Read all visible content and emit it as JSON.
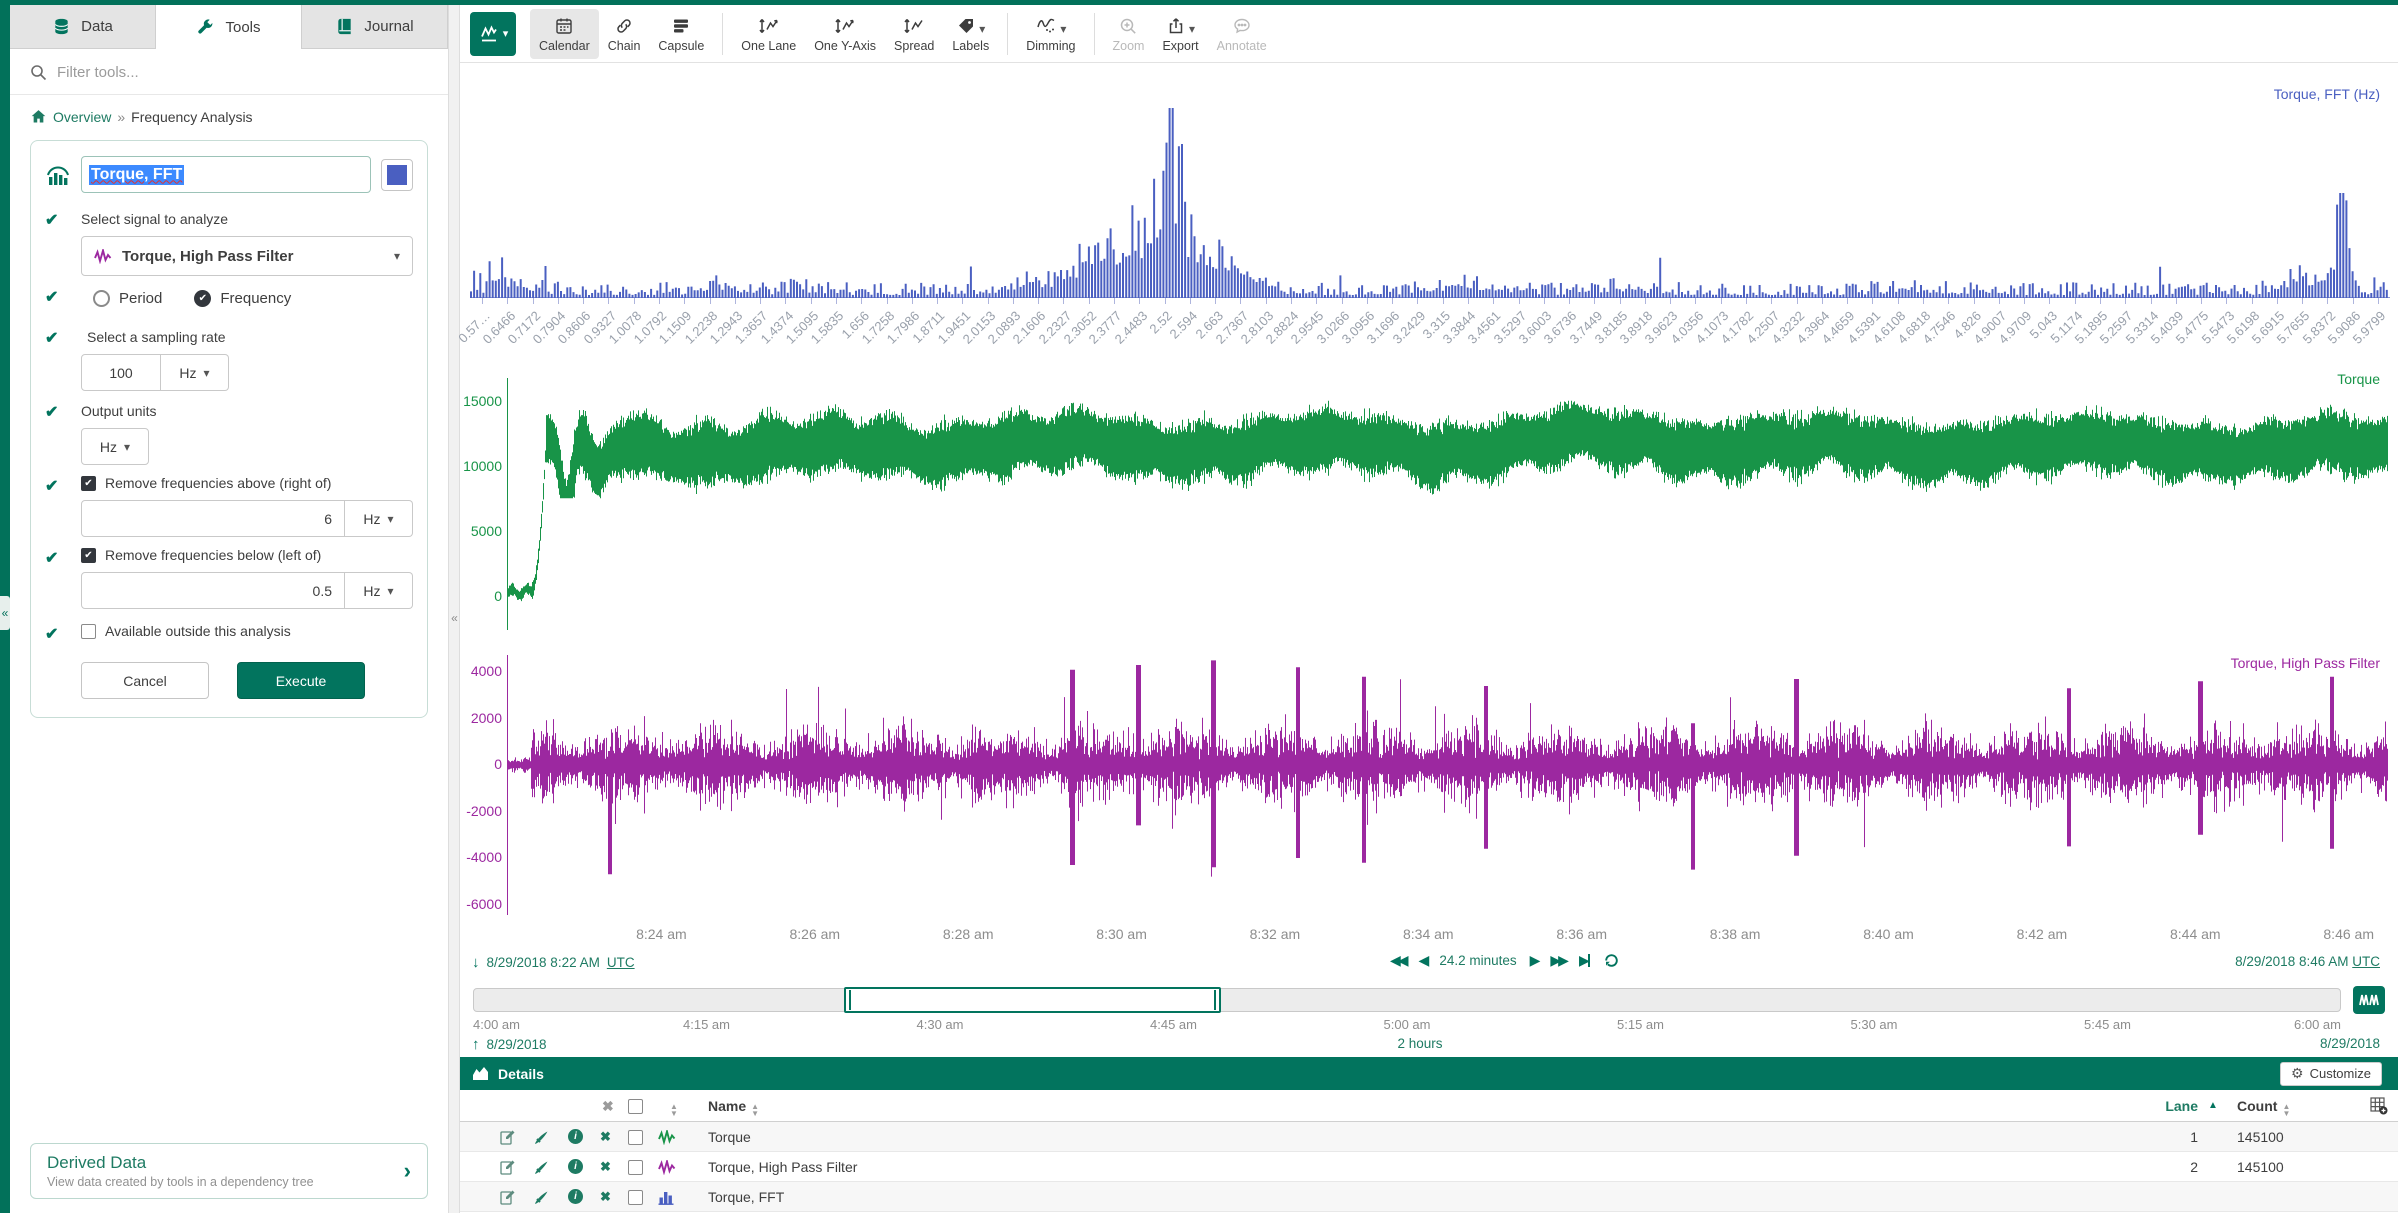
{
  "icons": {
    "check": "✔",
    "x": "✖",
    "caret_down": "▾",
    "sort_asc": "▲",
    "sort_desc": "▼",
    "collapse": "«",
    "breadcrumb_sep": "»",
    "arrow_down": "↓",
    "arrow_up": "↑",
    "step_back": "◀",
    "step_fwd": "▶",
    "fast_back": "◀◀",
    "fast_fwd": "▶▶",
    "gear": "⚙",
    "chevron_right": "›",
    "info": "i"
  },
  "sidebar": {
    "tabs": [
      {
        "label": "Data"
      },
      {
        "label": "Tools"
      },
      {
        "label": "Journal"
      }
    ],
    "filter_placeholder": "Filter tools...",
    "breadcrumb": {
      "home": "Overview",
      "separator": "»",
      "current": "Frequency Analysis"
    },
    "tool": {
      "name_value": "Torque, FFT",
      "swatch_color": "#4a5fc1",
      "fields": {
        "signal_label": "Select signal to analyze",
        "signal_value": "Torque, High Pass Filter",
        "period_label": "Period",
        "frequency_label": "Frequency",
        "sampling_label": "Select a sampling rate",
        "sampling_value": "100",
        "sampling_unit": "Hz",
        "output_label": "Output units",
        "output_unit": "Hz",
        "above_label": "Remove frequencies above (right of)",
        "above_value": "6",
        "above_unit": "Hz",
        "below_label": "Remove frequencies below (left of)",
        "below_value": "0.5",
        "below_unit": "Hz",
        "available_label": "Available outside this analysis"
      },
      "cancel_label": "Cancel",
      "execute_label": "Execute"
    },
    "derived": {
      "title": "Derived Data",
      "subtitle": "View data created by tools in a dependency tree"
    }
  },
  "toolbar": {
    "items": [
      {
        "label": "Calendar",
        "active": true
      },
      {
        "label": "Chain"
      },
      {
        "label": "Capsule"
      },
      {
        "label": "One Lane"
      },
      {
        "label": "One Y-Axis"
      },
      {
        "label": "Spread"
      },
      {
        "label": "Labels",
        "caret": true
      },
      {
        "label": "Dimming",
        "caret": true
      },
      {
        "label": "Zoom",
        "disabled": true
      },
      {
        "label": "Export",
        "caret": true
      },
      {
        "label": "Annotate",
        "disabled": true
      }
    ]
  },
  "chart_data": [
    {
      "type": "bar",
      "title": "Torque, FFT (Hz)",
      "color": "#4a5fc1",
      "x_unit": "Hz",
      "note": "FFT magnitude spectrum; dominant peak near 2.52 Hz, secondary peak near 5.62 Hz, elevated noise floor at left edge",
      "x_tick_labels": [
        "0.57…",
        "0.6466",
        "0.7172",
        "0.7904",
        "0.8606",
        "0.9327",
        "1.0078",
        "1.0792",
        "1.1509",
        "1.2238",
        "1.2943",
        "1.3657",
        "1.4374",
        "1.5095",
        "1.5835",
        "1.656",
        "1.7258",
        "1.7986",
        "1.8711",
        "1.9451",
        "2.0153",
        "2.0893",
        "2.1606",
        "2.2327",
        "2.3052",
        "2.3777",
        "2.4483",
        "2.52",
        "2.594",
        "2.663",
        "2.7367",
        "2.8103",
        "2.8824",
        "2.9545",
        "3.0266",
        "3.0956",
        "3.1696",
        "3.2429",
        "3.315",
        "3.3844",
        "3.4561",
        "3.5297",
        "3.6003",
        "3.6736",
        "3.7449",
        "3.8185",
        "3.8918",
        "3.9623",
        "4.0356",
        "4.1073",
        "4.1782",
        "4.2507",
        "4.3232",
        "4.3964",
        "4.4659",
        "4.5391",
        "4.6108",
        "4.6818",
        "4.7546",
        "4.826",
        "4.9007",
        "4.9709",
        "5.043",
        "5.1174",
        "5.1895",
        "5.2597",
        "5.3314",
        "5.4039",
        "5.4775",
        "5.5473",
        "5.6198",
        "5.6915",
        "5.7655",
        "5.8372",
        "5.9086",
        "5.9799"
      ]
    },
    {
      "type": "line",
      "title": "Torque",
      "color": "#189448",
      "y_ticks": [
        15000,
        10000,
        5000,
        0
      ],
      "y_range": [
        -2500,
        16800
      ],
      "x_range": [
        "8:22 am",
        "8:46 am"
      ],
      "note": "Dense oscillating signal: starts near 0, ramps to ~12000 and oscillates between ~9500 and ~14500"
    },
    {
      "type": "line",
      "title": "Torque, High Pass Filter",
      "color": "#9c28a0",
      "y_ticks": [
        4000,
        2000,
        0,
        -2000,
        -4000,
        -6000
      ],
      "y_range": [
        -6500,
        4700
      ],
      "x_range": [
        "8:22 am",
        "8:46 am"
      ],
      "note": "Zero-centered high-pass residual, typical amplitude ±1500 with spikes to ±4500"
    }
  ],
  "time_axis": {
    "labels": [
      "8:24 am",
      "8:26 am",
      "8:28 am",
      "8:30 am",
      "8:32 am",
      "8:34 am",
      "8:36 am",
      "8:38 am",
      "8:40 am",
      "8:42 am",
      "8:44 am",
      "8:46 am"
    ]
  },
  "range": {
    "start": "8/29/2018 8:22 AM",
    "start_tz": "UTC",
    "duration": "24.2 minutes",
    "end": "8/29/2018 8:46 AM",
    "end_tz": "UTC"
  },
  "scrubber": {
    "labels": [
      "4:00 am",
      "4:15 am",
      "4:30 am",
      "4:45 am",
      "5:00 am",
      "5:15 am",
      "5:30 am",
      "5:45 am",
      "6:00 am"
    ],
    "start_date": "8/29/2018",
    "duration": "2 hours",
    "end_date": "8/29/2018"
  },
  "details": {
    "title": "Details",
    "customize_label": "Customize",
    "columns": {
      "name": "Name",
      "lane": "Lane",
      "count": "Count"
    },
    "rows": [
      {
        "name": "Torque",
        "icon": "signal",
        "color": "#189448",
        "lane": "1",
        "count": "145100"
      },
      {
        "name": "Torque, High Pass Filter",
        "icon": "signal",
        "color": "#9c28a0",
        "lane": "2",
        "count": "145100"
      },
      {
        "name": "Torque, FFT",
        "icon": "histogram",
        "color": "#4a5fc1",
        "lane": "",
        "count": ""
      }
    ]
  }
}
